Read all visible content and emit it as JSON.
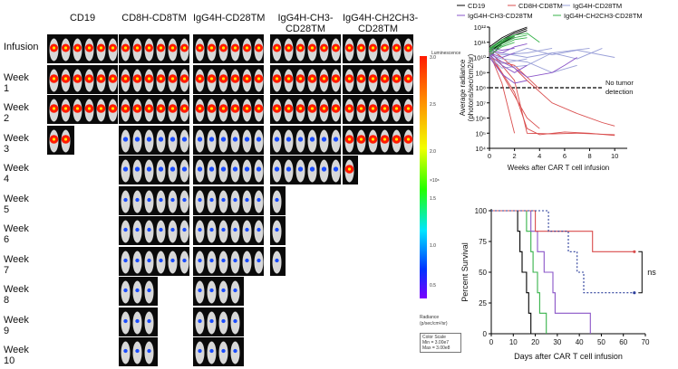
{
  "imaging": {
    "groups": [
      "CD19",
      "CD8H-CD8TM",
      "IgG4H-CD28TM",
      "IgG4H-CH3-\nCD28TM",
      "IgG4H-CH2CH3-\nCD28TM"
    ],
    "timepoints": [
      "Infusion",
      "Week 1",
      "Week 2",
      "Week 3",
      "Week 4",
      "Week 5",
      "Week 6",
      "Week 7",
      "Week 8",
      "Week 9",
      "Week 10"
    ],
    "surviving_mice": [
      [
        6,
        6,
        6,
        6,
        6
      ],
      [
        6,
        6,
        6,
        6,
        6
      ],
      [
        6,
        6,
        6,
        6,
        6
      ],
      [
        2,
        6,
        6,
        6,
        6
      ],
      [
        0,
        6,
        6,
        6,
        1
      ],
      [
        0,
        6,
        6,
        1,
        0
      ],
      [
        0,
        6,
        6,
        1,
        0
      ],
      [
        0,
        6,
        6,
        1,
        0
      ],
      [
        0,
        3,
        4,
        0,
        0
      ],
      [
        0,
        3,
        4,
        0,
        0
      ],
      [
        0,
        3,
        4,
        0,
        0
      ]
    ]
  },
  "colorbar": {
    "title": "Luminescence",
    "ticks": [
      "3.0",
      "2.5",
      "2.0",
      "1.5",
      "1.0",
      "0.5"
    ],
    "exponent": "×10⁸",
    "unit_label": "Radiance",
    "unit": "(p/sec/cm²/sr)",
    "scale_title": "Color Scale",
    "min": "Min = 3.00e7",
    "max": "Max = 3.00e8"
  },
  "chart_data": [
    {
      "type": "line",
      "xlabel": "Weeks after CAR T cell infusion",
      "ylabel": "Average radiance (photons/sec/cm2/sr)",
      "y_scale": "log",
      "xlim": [
        0,
        11
      ],
      "ylim": [
        10000,
        1000000000000
      ],
      "x_ticks": [
        0,
        2,
        4,
        6,
        8,
        10
      ],
      "y_ticks": [
        "10⁴",
        "10⁵",
        "10⁶",
        "10⁷",
        "10⁸",
        "10⁹",
        "10¹⁰",
        "10¹¹",
        "10¹²"
      ],
      "threshold": {
        "y": 100000000,
        "label": "No tumor detection",
        "style": "dashed"
      },
      "legend_position": "top",
      "series": [
        {
          "name": "CD19",
          "color": "#000000",
          "lines": [
            [
              [
                0,
                30000000000
              ],
              [
                1,
                150000000000
              ],
              [
                2,
                400000000000
              ],
              [
                3,
                800000000000
              ]
            ],
            [
              [
                0,
                20000000000
              ],
              [
                1,
                100000000000
              ],
              [
                2,
                300000000000
              ],
              [
                3,
                600000000000
              ]
            ],
            [
              [
                0,
                50000000000
              ],
              [
                1,
                200000000000
              ],
              [
                2,
                500000000000
              ],
              [
                3,
                1000000000000
              ]
            ],
            [
              [
                0,
                10000000000
              ],
              [
                1,
                80000000000
              ],
              [
                2,
                200000000000
              ]
            ],
            [
              [
                0,
                40000000000
              ],
              [
                1,
                120000000000
              ],
              [
                2,
                300000000000
              ]
            ],
            [
              [
                0,
                25000000000
              ],
              [
                1,
                90000000000
              ],
              [
                2,
                250000000000
              ]
            ]
          ]
        },
        {
          "name": "CD8H-CD8TM",
          "color": "#d94c4c",
          "lines": [
            [
              [
                0,
                30000000000
              ],
              [
                1,
                3000000000
              ],
              [
                2,
                300000000
              ],
              [
                3,
                100000
              ],
              [
                5,
                90000
              ],
              [
                7,
                100000
              ],
              [
                10,
                80000
              ]
            ],
            [
              [
                0,
                20000000000
              ],
              [
                1,
                1000000000
              ],
              [
                2,
                50000000
              ],
              [
                3,
                200000
              ],
              [
                4,
                80000
              ],
              [
                6,
                120000
              ],
              [
                8,
                100000
              ],
              [
                10,
                70000
              ]
            ],
            [
              [
                0,
                10000000000
              ],
              [
                1,
                5000000000
              ],
              [
                2,
                3000000000
              ],
              [
                3,
                500000000
              ],
              [
                4,
                80000000
              ]
            ],
            [
              [
                0,
                15000000000
              ],
              [
                1,
                800000000
              ],
              [
                2,
                30000000
              ],
              [
                3,
                1000000
              ],
              [
                4,
                200000
              ]
            ],
            [
              [
                0,
                40000000000
              ],
              [
                1,
                10000000000
              ],
              [
                2,
                2000000000
              ],
              [
                3,
                300000000
              ],
              [
                5,
                10000000
              ],
              [
                7,
                2000000
              ],
              [
                9,
                500000
              ],
              [
                10,
                300000
              ]
            ],
            [
              [
                0,
                20000000000
              ],
              [
                1,
                200000000
              ],
              [
                2,
                100000
              ]
            ]
          ]
        },
        {
          "name": "IgG4H-CD28TM",
          "color": "#9aa0d8",
          "lines": [
            [
              [
                0,
                20000000000
              ],
              [
                1,
                10000000000
              ],
              [
                3,
                40000000000
              ],
              [
                5,
                15000000000
              ],
              [
                7,
                30000000000
              ],
              [
                10,
                10000000000
              ]
            ],
            [
              [
                0,
                30000000000
              ],
              [
                1,
                20000000000
              ],
              [
                3,
                10000000000
              ],
              [
                5,
                20000000000
              ],
              [
                7,
                8000000000
              ],
              [
                9,
                40000000000
              ]
            ],
            [
              [
                0,
                15000000000
              ],
              [
                1,
                8000000000
              ],
              [
                3,
                5000000000
              ],
              [
                5,
                1000000000
              ],
              [
                7,
                3000000000
              ]
            ],
            [
              [
                0,
                10000000000
              ],
              [
                1,
                2000000000
              ],
              [
                3,
                3000000000
              ],
              [
                5,
                20000000000
              ],
              [
                8,
                40000000000
              ]
            ],
            [
              [
                0,
                25000000000
              ],
              [
                1,
                15000000000
              ],
              [
                3,
                20000000000
              ],
              [
                5,
                40000000000
              ]
            ],
            [
              [
                0,
                12000000000
              ],
              [
                1,
                4000000000
              ],
              [
                3,
                8000000000
              ]
            ]
          ]
        },
        {
          "name": "IgG4H-CH3-CD28TM",
          "color": "#8a55c8",
          "lines": [
            [
              [
                0,
                20000000000
              ],
              [
                1,
                5000000000
              ],
              [
                2,
                2000000000
              ],
              [
                3,
                500000000
              ],
              [
                5,
                1000000000
              ],
              [
                6,
                3000000000
              ],
              [
                7,
                10000000000
              ]
            ],
            [
              [
                0,
                30000000000
              ],
              [
                1,
                20000000000
              ],
              [
                2,
                50000000000
              ],
              [
                3,
                80000000000
              ]
            ],
            [
              [
                0,
                15000000000
              ],
              [
                1,
                3000000000
              ],
              [
                2,
                1000000000
              ],
              [
                3,
                3000000000
              ]
            ],
            [
              [
                0,
                10000000000
              ],
              [
                1,
                800000000
              ],
              [
                2,
                200000000
              ],
              [
                3,
                300000000
              ]
            ],
            [
              [
                0,
                40000000000
              ],
              [
                1,
                30000000000
              ],
              [
                2,
                40000000000
              ]
            ],
            [
              [
                0,
                20000000000
              ],
              [
                1,
                10000000000
              ],
              [
                2,
                20000000000
              ]
            ]
          ]
        },
        {
          "name": "IgG4H-CH2CH3-CD28TM",
          "color": "#37b34a",
          "lines": [
            [
              [
                0,
                30000000000
              ],
              [
                1,
                100000000000
              ],
              [
                2,
                300000000000
              ],
              [
                3,
                400000000000
              ],
              [
                4,
                100000000000
              ]
            ],
            [
              [
                0,
                20000000000
              ],
              [
                1,
                80000000000
              ],
              [
                2,
                200000000000
              ],
              [
                3,
                300000000000
              ]
            ],
            [
              [
                0,
                40000000000
              ],
              [
                1,
                150000000000
              ],
              [
                2,
                300000000000
              ]
            ],
            [
              [
                0,
                25000000000
              ],
              [
                1,
                60000000000
              ],
              [
                2,
                150000000000
              ],
              [
                3,
                200000000000
              ]
            ],
            [
              [
                0,
                15000000000
              ],
              [
                1,
                50000000000
              ],
              [
                2,
                100000000000
              ]
            ],
            [
              [
                0,
                35000000000
              ],
              [
                1,
                120000000000
              ],
              [
                2,
                250000000000
              ]
            ]
          ]
        }
      ]
    },
    {
      "type": "line",
      "subtype": "kaplan-meier",
      "xlabel": "Days after CAR T cell infusion",
      "ylabel": "Percent Survival",
      "xlim": [
        0,
        70
      ],
      "ylim": [
        0,
        100
      ],
      "x_ticks": [
        0,
        10,
        20,
        30,
        40,
        50,
        60,
        70
      ],
      "y_ticks": [
        0,
        25,
        50,
        75,
        100
      ],
      "annotation": "ns",
      "series": [
        {
          "color": "#000000",
          "dash": "",
          "steps": [
            [
              0,
              100
            ],
            [
              12,
              100
            ],
            [
              12,
              83.3
            ],
            [
              13,
              83.3
            ],
            [
              13,
              66.7
            ],
            [
              14,
              66.7
            ],
            [
              14,
              50
            ],
            [
              16,
              50
            ],
            [
              16,
              33.3
            ],
            [
              17,
              33.3
            ],
            [
              17,
              16.7
            ],
            [
              18,
              16.7
            ],
            [
              18,
              0
            ]
          ]
        },
        {
          "color": "#37b34a",
          "dash": "",
          "steps": [
            [
              0,
              100
            ],
            [
              16,
              100
            ],
            [
              16,
              83.3
            ],
            [
              18,
              83.3
            ],
            [
              18,
              66.7
            ],
            [
              19,
              66.7
            ],
            [
              19,
              50
            ],
            [
              21,
              50
            ],
            [
              21,
              33.3
            ],
            [
              22,
              33.3
            ],
            [
              22,
              16.7
            ],
            [
              25,
              16.7
            ],
            [
              25,
              0
            ]
          ]
        },
        {
          "color": "#8a55c8",
          "dash": "",
          "steps": [
            [
              0,
              100
            ],
            [
              18,
              100
            ],
            [
              18,
              83.3
            ],
            [
              21,
              83.3
            ],
            [
              21,
              66.7
            ],
            [
              24,
              66.7
            ],
            [
              24,
              50
            ],
            [
              28,
              50
            ],
            [
              28,
              33.3
            ],
            [
              29,
              33.3
            ],
            [
              29,
              16.7
            ],
            [
              45,
              16.7
            ],
            [
              45,
              0
            ]
          ]
        },
        {
          "color": "#d94c4c",
          "dash": "",
          "steps": [
            [
              0,
              100
            ],
            [
              20,
              100
            ],
            [
              20,
              83.3
            ],
            [
              46,
              83.3
            ],
            [
              46,
              66.7
            ],
            [
              65,
              66.7
            ]
          ],
          "censored": [
            [
              65,
              66.7
            ]
          ]
        },
        {
          "color": "#2a3d9a",
          "dash": "2,2",
          "steps": [
            [
              0,
              100
            ],
            [
              26,
              100
            ],
            [
              26,
              83.3
            ],
            [
              35,
              83.3
            ],
            [
              35,
              66.7
            ],
            [
              39,
              66.7
            ],
            [
              39,
              50
            ],
            [
              42,
              50
            ],
            [
              42,
              33.3
            ],
            [
              65,
              33.3
            ]
          ],
          "censored": [
            [
              65,
              33.3
            ]
          ]
        }
      ]
    }
  ]
}
